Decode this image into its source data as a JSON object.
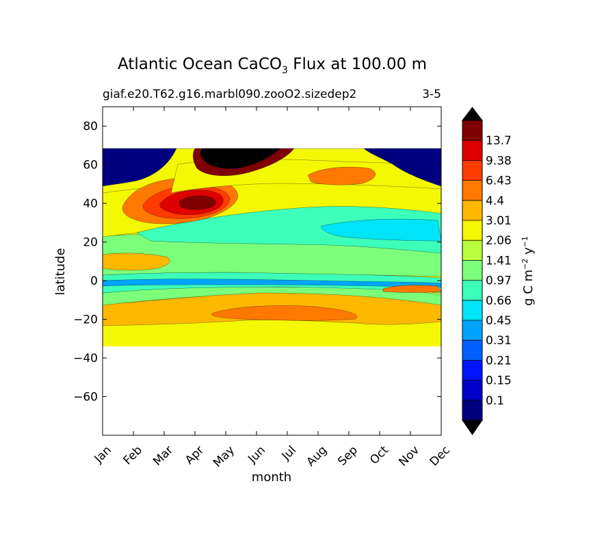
{
  "chart_data": {
    "type": "contourf",
    "title_prefix": "Atlantic Ocean CaCO",
    "title_subscript": "3",
    "title_suffix": " Flux at 100.00 m",
    "subtitle_left": "giaf.e20.T62.g16.marbl090.zooO2.sizedep2",
    "subtitle_right": "3-5",
    "xlabel": "month",
    "ylabel": "latitude",
    "x_ticks": [
      "Jan",
      "Feb",
      "Mar",
      "Apr",
      "May",
      "Jun",
      "Jul",
      "Aug",
      "Sep",
      "Oct",
      "Nov",
      "Dec"
    ],
    "ylim": [
      -80,
      90
    ],
    "y_ticks": [
      80,
      60,
      40,
      20,
      0,
      -20,
      -40,
      -60
    ],
    "y_tick_labels": [
      "80",
      "60",
      "40",
      "20",
      "0",
      "−20",
      "−40",
      "−60"
    ],
    "data_lat_range": [
      -34,
      69
    ],
    "colorbar": {
      "label_parts": [
        "g C m",
        "−2",
        " y",
        "−1"
      ],
      "levels": [
        "0.1",
        "0.15",
        "0.21",
        "0.31",
        "0.45",
        "0.66",
        "0.97",
        "1.41",
        "2.06",
        "3.01",
        "4.4",
        "6.43",
        "9.38",
        "13.7"
      ],
      "colors": [
        "#00007f",
        "#0000c8",
        "#0014ff",
        "#0060ff",
        "#00a4ff",
        "#00e4f8",
        "#3cffba",
        "#7cff7a",
        "#b9ff3d",
        "#f4f802",
        "#ffb800",
        "#ff7800",
        "#ff3b00",
        "#df0000",
        "#7f0000"
      ],
      "over_color": "#000000",
      "under_color": "#000000"
    },
    "regions": [
      {
        "name": "south-base",
        "level": 9
      },
      {
        "name": "south-mid-band",
        "level": 10
      },
      {
        "name": "south-core",
        "level": 11
      },
      {
        "name": "subtropical-south",
        "level": 7
      },
      {
        "name": "equatorial-band",
        "level": 6
      },
      {
        "name": "equatorial-thin-band",
        "level": 4
      },
      {
        "name": "equatorial-east-patch",
        "level": 11
      },
      {
        "name": "tropical-north",
        "level": 7
      },
      {
        "name": "tropical-north-west",
        "level": 10
      },
      {
        "name": "subtropical-north",
        "level": 6
      },
      {
        "name": "subtropical-north-inner",
        "level": 5
      },
      {
        "name": "temperate-north",
        "level": 9
      },
      {
        "name": "spring-bloom-outer",
        "level": 11
      },
      {
        "name": "spring-bloom-mid",
        "level": 12
      },
      {
        "name": "spring-bloom-inner",
        "level": 13
      },
      {
        "name": "spring-bloom-core",
        "level": 14
      },
      {
        "name": "summer-subpolar",
        "level": 9
      },
      {
        "name": "sep-patch",
        "level": 11
      },
      {
        "name": "subpolar-winter-west",
        "level": 0
      },
      {
        "name": "subpolar-winter-east",
        "level": 0
      },
      {
        "name": "may-bloom",
        "level": 14
      },
      {
        "name": "may-bloom-core",
        "level": 15
      }
    ]
  }
}
